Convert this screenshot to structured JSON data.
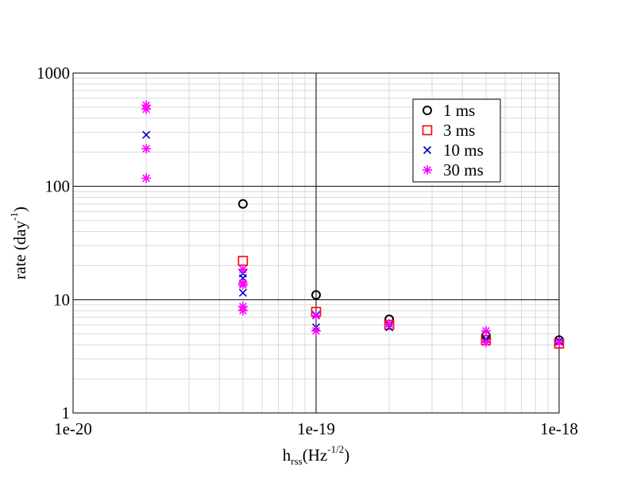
{
  "chart_data": {
    "type": "scatter",
    "xscale": "log",
    "yscale": "log",
    "xlim": [
      1e-20,
      1e-18
    ],
    "ylim": [
      1,
      1000
    ],
    "grid": true,
    "xlabel": {
      "main": "h",
      "sub": "rss",
      "unit_open": "(Hz",
      "sup": "-1/2",
      "unit_close": ")"
    },
    "ylabel": {
      "main": "rate (day",
      "sup": "-1",
      "close": ")"
    },
    "x_ticks": [
      {
        "value": 1e-20,
        "label": "1e-20"
      },
      {
        "value": 1e-19,
        "label": "1e-19"
      },
      {
        "value": 1e-18,
        "label": "1e-18"
      }
    ],
    "y_ticks": [
      {
        "value": 1,
        "label": "1"
      },
      {
        "value": 10,
        "label": "10"
      },
      {
        "value": 100,
        "label": "100"
      },
      {
        "value": 1000,
        "label": "1000"
      }
    ],
    "legend_position": "top-right",
    "series": [
      {
        "name": "1 ms",
        "marker": "circle",
        "color": "#000000",
        "points": [
          {
            "x": 5e-20,
            "y": 70
          },
          {
            "x": 1e-19,
            "y": 11
          },
          {
            "x": 2e-19,
            "y": 6.7
          },
          {
            "x": 5e-19,
            "y": 4.8
          },
          {
            "x": 1e-18,
            "y": 4.4
          }
        ]
      },
      {
        "name": "3 ms",
        "marker": "square",
        "color": "#ff0000",
        "points": [
          {
            "x": 5e-20,
            "y": 22
          },
          {
            "x": 1e-19,
            "y": 7.8
          },
          {
            "x": 2e-19,
            "y": 6.0
          },
          {
            "x": 5e-19,
            "y": 4.4
          },
          {
            "x": 1e-18,
            "y": 4.1
          }
        ]
      },
      {
        "name": "10 ms",
        "marker": "x",
        "color": "#0000cc",
        "points": [
          {
            "x": 2e-20,
            "y": 285
          },
          {
            "x": 5e-20,
            "y": 17
          },
          {
            "x": 5e-20,
            "y": 15.5
          },
          {
            "x": 5e-20,
            "y": 11.5
          },
          {
            "x": 1e-19,
            "y": 7.3
          },
          {
            "x": 1e-19,
            "y": 5.7
          },
          {
            "x": 2e-19,
            "y": 5.7
          },
          {
            "x": 5e-19,
            "y": 4.5
          },
          {
            "x": 1e-18,
            "y": 4.3
          }
        ]
      },
      {
        "name": "30 ms",
        "marker": "asterisk",
        "color": "#ff00ff",
        "points": [
          {
            "x": 2e-20,
            "y": 520
          },
          {
            "x": 2e-20,
            "y": 480
          },
          {
            "x": 2e-20,
            "y": 215
          },
          {
            "x": 2e-20,
            "y": 118
          },
          {
            "x": 5e-20,
            "y": 18.5
          },
          {
            "x": 5e-20,
            "y": 14
          },
          {
            "x": 5e-20,
            "y": 13.5
          },
          {
            "x": 5e-20,
            "y": 8.7
          },
          {
            "x": 5e-20,
            "y": 8.0
          },
          {
            "x": 1e-19,
            "y": 7.2
          },
          {
            "x": 1e-19,
            "y": 5.3
          },
          {
            "x": 2e-19,
            "y": 6.1
          },
          {
            "x": 5e-19,
            "y": 5.3
          },
          {
            "x": 5e-19,
            "y": 4.2
          },
          {
            "x": 1e-18,
            "y": 4.2
          }
        ]
      }
    ]
  }
}
